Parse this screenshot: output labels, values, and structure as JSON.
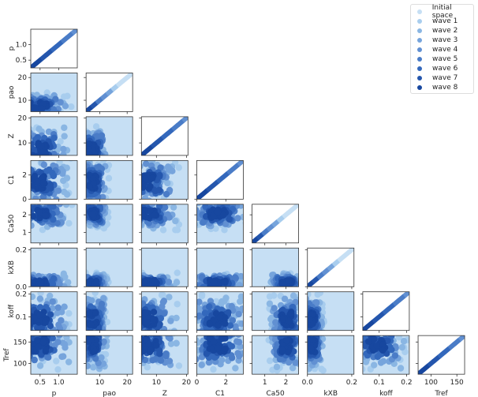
{
  "chart_data": {
    "type": "scatter",
    "title": "",
    "subtype": "pairplot-lower-triangle",
    "variables": [
      "p",
      "pao",
      "Z",
      "C1",
      "Ca50",
      "kXB",
      "koff",
      "Tref"
    ],
    "axis_ranges": {
      "p": [
        0.25,
        1.5
      ],
      "pao": [
        5,
        22
      ],
      "Z": [
        5,
        20.5
      ],
      "C1": [
        0,
        3.2
      ],
      "Ca50": [
        0.4,
        2.6
      ],
      "kXB": [
        0,
        0.21
      ],
      "koff": [
        0.04,
        0.21
      ],
      "Tref": [
        75,
        165
      ]
    },
    "y_ticks": {
      "p": [
        "0.5",
        "1.0"
      ],
      "pao": [
        "10",
        "20"
      ],
      "Z": [
        "10",
        "20"
      ],
      "C1": [
        "0",
        "2"
      ],
      "Ca50": [
        "1",
        "2"
      ],
      "kXB": [
        "0.0",
        "0.2"
      ],
      "koff": [
        "0.1",
        "0.2"
      ],
      "Tref": [
        "100",
        "150"
      ]
    },
    "x_ticks": {
      "p": [
        "0.5",
        "1.0"
      ],
      "pao": [
        "10",
        "20"
      ],
      "Z": [
        "10",
        "20"
      ],
      "C1": [
        "0",
        "2"
      ],
      "Ca50": [
        "1",
        "2"
      ],
      "kXB": [
        "0.0",
        "0.2"
      ],
      "koff": [
        "0.1",
        "0.2"
      ],
      "Tref": [
        "100",
        "150"
      ]
    },
    "legend": {
      "position": "upper right",
      "entries": [
        "Initial space",
        "wave 1",
        "wave 2",
        "wave 3",
        "wave 4",
        "wave 5",
        "wave 6",
        "wave 7",
        "wave 8"
      ],
      "colors": [
        "#c6dff4",
        "#a8cdee",
        "#8ab6e3",
        "#76a4dc",
        "#6190d2",
        "#4a7cc7",
        "#3368bc",
        "#2456ad",
        "#17479f"
      ]
    },
    "grid": false,
    "series_note": "Nested point clouds of successive history-matching waves; each wave shrinks the non-implausible region, drawn from light (initial space) to dark (wave 8)."
  },
  "legend_items": [
    "Initial space",
    "wave 1",
    "wave 2",
    "wave 3",
    "wave 4",
    "wave 5",
    "wave 6",
    "wave 7",
    "wave 8"
  ]
}
